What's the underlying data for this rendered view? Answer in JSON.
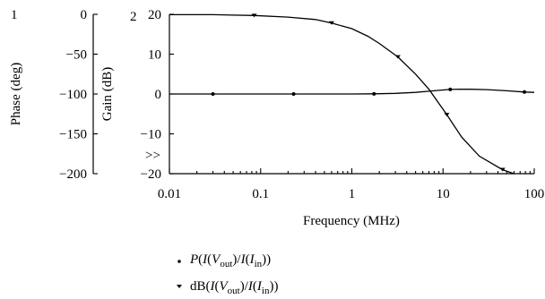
{
  "chart_data": {
    "type": "line",
    "x_scale": "log",
    "x_axis": {
      "label": "Frequency (MHz)",
      "range": [
        0.01,
        100
      ],
      "ticks": [
        0.01,
        0.1,
        1,
        10,
        100
      ],
      "tick_labels": [
        "0.01",
        "0.1",
        "1",
        "10",
        "100"
      ]
    },
    "phase_axis": {
      "label": "Phase (deg)",
      "range": [
        -200,
        0
      ],
      "ticks": [
        0,
        -50,
        -100,
        -150,
        -200
      ],
      "tick_labels": [
        "0",
        "−50",
        "−100",
        "−150",
        "−200"
      ],
      "curve_number": "1"
    },
    "gain_axis": {
      "label": "Gain (dB)",
      "range": [
        -20,
        20
      ],
      "ticks": [
        20,
        10,
        0,
        -10,
        -20
      ],
      "tick_labels": [
        "20",
        "10",
        "0",
        "−10",
        "−20"
      ],
      "curve_number": "2",
      "selector": ">>"
    },
    "series": [
      {
        "axis": "phase",
        "marker": "dot",
        "legend_text": "P(I(V_out)/I(I_in))",
        "x": [
          0.01,
          0.03,
          0.1,
          0.23,
          0.5,
          1,
          1.75,
          3,
          5,
          7,
          10,
          12,
          15,
          20,
          30,
          50,
          78,
          100
        ],
        "y": [
          -100,
          -100,
          -100,
          -100,
          -100,
          -100,
          -99.8,
          -99.2,
          -98,
          -96.5,
          -95,
          -94.3,
          -94,
          -94,
          -94.5,
          -96,
          -97.5,
          -98
        ],
        "marker_x": [
          0.03,
          0.23,
          1.75,
          12,
          78
        ]
      },
      {
        "axis": "gain",
        "marker": "triangle",
        "legend_text": "dB(I(V_out)/I(I_in))",
        "x": [
          0.01,
          0.03,
          0.085,
          0.2,
          0.4,
          0.6,
          1,
          1.5,
          2,
          3.2,
          5,
          7,
          11,
          16,
          25,
          45,
          60
        ],
        "y": [
          19.9,
          19.9,
          19.7,
          19.3,
          18.7,
          17.8,
          16.4,
          14.5,
          12.7,
          9.3,
          5,
          1.2,
          -5.2,
          -10.8,
          -15.6,
          -19,
          -20
        ],
        "marker_x": [
          0.085,
          0.6,
          3.2,
          11,
          45
        ]
      }
    ],
    "legend": {
      "position": "bottom",
      "entries": [
        {
          "marker": "dot",
          "prefix": "P(I(V",
          "sub1": "out",
          "mid": ")/I(I",
          "sub2": "in",
          "suffix": "))"
        },
        {
          "marker": "triangle",
          "prefix": "dB(I(V",
          "sub1": "out",
          "mid": ")/I(I",
          "sub2": "in",
          "suffix": "))"
        }
      ]
    },
    "grid": false
  }
}
